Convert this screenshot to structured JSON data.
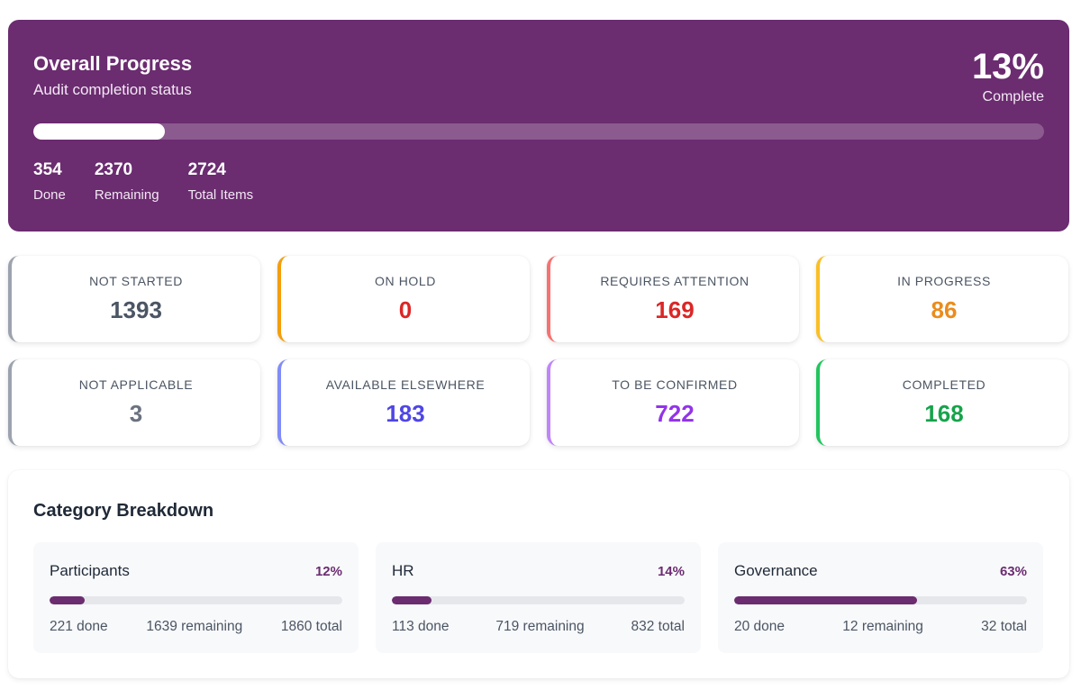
{
  "overall": {
    "title": "Overall Progress",
    "subtitle": "Audit completion status",
    "percent_text": "13%",
    "percent_label": "Complete",
    "progress": 0.13,
    "accent_color": "#6b2c70",
    "stats": [
      {
        "value": "354",
        "label": "Done"
      },
      {
        "value": "2370",
        "label": "Remaining"
      },
      {
        "value": "2724",
        "label": "Total Items"
      }
    ]
  },
  "status_cards": [
    {
      "label": "NOT STARTED",
      "value": "1393",
      "color": "#4b5563",
      "border": "#9ca3af"
    },
    {
      "label": "ON HOLD",
      "value": "0",
      "color": "#dc2626",
      "border": "#f59e0b"
    },
    {
      "label": "REQUIRES ATTENTION",
      "value": "169",
      "color": "#dc2626",
      "border": "#f87171"
    },
    {
      "label": "IN PROGRESS",
      "value": "86",
      "color": "#ea8c1c",
      "border": "#fbbf24"
    },
    {
      "label": "NOT APPLICABLE",
      "value": "3",
      "color": "#6b7280",
      "border": "#9ca3af"
    },
    {
      "label": "AVAILABLE ELSEWHERE",
      "value": "183",
      "color": "#4f46e5",
      "border": "#818cf8"
    },
    {
      "label": "TO BE CONFIRMED",
      "value": "722",
      "color": "#9333ea",
      "border": "#c084fc"
    },
    {
      "label": "COMPLETED",
      "value": "168",
      "color": "#16a34a",
      "border": "#22c55e"
    }
  ],
  "breakdown": {
    "title": "Category Breakdown",
    "categories": [
      {
        "name": "Participants",
        "percent_text": "12%",
        "progress": 0.12,
        "done": "221 done",
        "remaining": "1639 remaining",
        "total": "1860 total"
      },
      {
        "name": "HR",
        "percent_text": "14%",
        "progress": 0.135,
        "done": "113 done",
        "remaining": "719 remaining",
        "total": "832 total"
      },
      {
        "name": "Governance",
        "percent_text": "63%",
        "progress": 0.625,
        "done": "20 done",
        "remaining": "12 remaining",
        "total": "32 total"
      }
    ]
  }
}
